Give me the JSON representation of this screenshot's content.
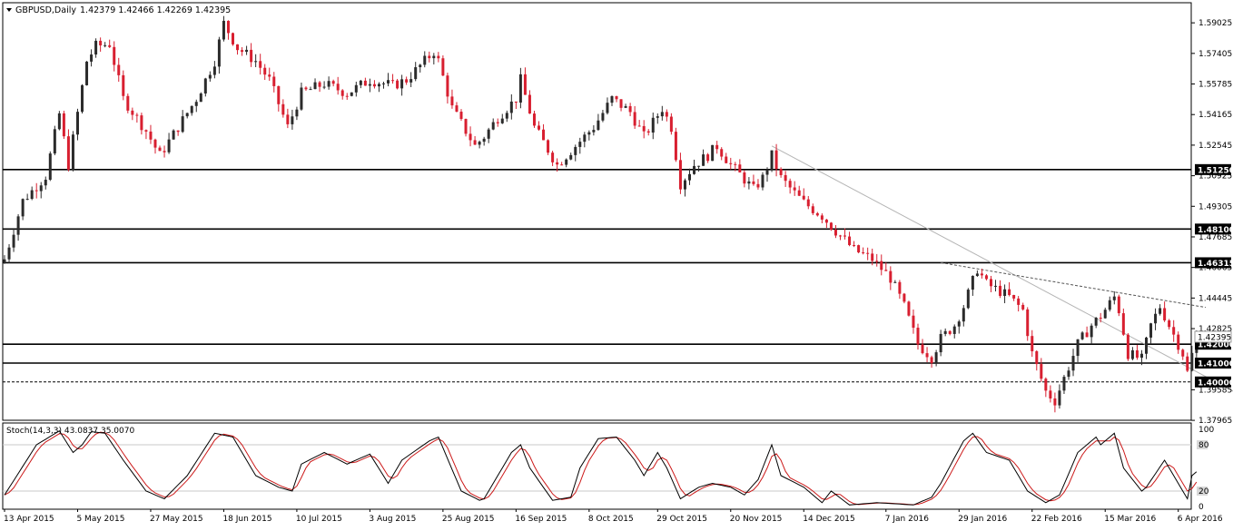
{
  "chart_data": {
    "type": "candlestick",
    "header": {
      "symbol": "GBPUSD,Daily",
      "ohlc": "1.42379 1.42466 1.42269 1.42395",
      "menu_icon": "triangle-down-icon"
    },
    "colors": {
      "bull": "#2b2b2b",
      "bear": "#d81f30",
      "level_line": "#000000",
      "trendline": "#b4b4b4",
      "stoch_main": "#000000",
      "stoch_signal": "#cc1a1a",
      "price_tag_bg": "#000000",
      "price_tag_text": "#ffffff",
      "grid_y": "#000000"
    },
    "price_axis": {
      "ylim": [
        1.3797,
        1.6009
      ],
      "ticks": [
        "1.59025",
        "1.57405",
        "1.55785",
        "1.54165",
        "1.52545",
        "1.50925",
        "1.49305",
        "1.47685",
        "1.46065",
        "1.44445",
        "1.42825",
        "1.39585",
        "1.37965"
      ]
    },
    "date_axis": {
      "labels": [
        "13 Apr 2015",
        "5 May 2015",
        "27 May 2015",
        "18 Jun 2015",
        "10 Jul 2015",
        "3 Aug 2015",
        "25 Aug 2015",
        "16 Sep 2015",
        "8 Oct 2015",
        "29 Oct 2015",
        "20 Nov 2015",
        "14 Dec 2015",
        "7 Jan 2016",
        "29 Jan 2016",
        "22 Feb 2016",
        "15 Mar 2016",
        "6 Apr 2016"
      ]
    },
    "current_price": "1.42395",
    "levels": [
      {
        "label": "1.51250",
        "value": 1.5125,
        "style": "solid"
      },
      {
        "label": "1.48100",
        "value": 1.481,
        "style": "solid"
      },
      {
        "label": "1.46315",
        "value": 1.46315,
        "style": "solid"
      },
      {
        "label": "1.42000",
        "value": 1.42,
        "style": "solid"
      },
      {
        "label": "1.41000",
        "value": 1.41,
        "style": "solid"
      },
      {
        "label": "1.40000",
        "value": 1.4,
        "style": "dashed"
      }
    ],
    "trendlines": [
      {
        "from": {
          "date": "2015-12-03",
          "price": 1.525
        },
        "to": {
          "date": "2016-05-10",
          "price": 1.3797
        },
        "style": "solid"
      },
      {
        "from": {
          "date": "2016-01-25",
          "price": 1.4632
        },
        "to": {
          "date": "2016-04-14",
          "price": 1.4395
        },
        "style": "dashed"
      }
    ],
    "price_anchors": [
      [
        "2015-04-13",
        1.465
      ],
      [
        "2015-04-17",
        1.496
      ],
      [
        "2015-04-24",
        1.509
      ],
      [
        "2015-04-29",
        1.542
      ],
      [
        "2015-05-01",
        1.515
      ],
      [
        "2015-05-07",
        1.57
      ],
      [
        "2015-05-11",
        1.578
      ],
      [
        "2015-05-14",
        1.579
      ],
      [
        "2015-05-19",
        1.55
      ],
      [
        "2015-05-26",
        1.533
      ],
      [
        "2015-05-29",
        1.52
      ],
      [
        "2015-06-04",
        1.535
      ],
      [
        "2015-06-10",
        1.55
      ],
      [
        "2015-06-16",
        1.57
      ],
      [
        "2015-06-18",
        1.59
      ],
      [
        "2015-06-23",
        1.577
      ],
      [
        "2015-06-29",
        1.57
      ],
      [
        "2015-07-02",
        1.56
      ],
      [
        "2015-07-08",
        1.535
      ],
      [
        "2015-07-13",
        1.553
      ],
      [
        "2015-07-20",
        1.558
      ],
      [
        "2015-07-27",
        1.553
      ],
      [
        "2015-08-03",
        1.56
      ],
      [
        "2015-08-10",
        1.557
      ],
      [
        "2015-08-13",
        1.56
      ],
      [
        "2015-08-19",
        1.57
      ],
      [
        "2015-08-21",
        1.575
      ],
      [
        "2015-08-24",
        1.57
      ],
      [
        "2015-08-27",
        1.545
      ],
      [
        "2015-09-03",
        1.525
      ],
      [
        "2015-09-07",
        1.53
      ],
      [
        "2015-09-10",
        1.54
      ],
      [
        "2015-09-16",
        1.55
      ],
      [
        "2015-09-17",
        1.56
      ],
      [
        "2015-09-22",
        1.535
      ],
      [
        "2015-09-29",
        1.515
      ],
      [
        "2015-10-05",
        1.525
      ],
      [
        "2015-10-09",
        1.535
      ],
      [
        "2015-10-15",
        1.55
      ],
      [
        "2015-10-21",
        1.543
      ],
      [
        "2015-10-26",
        1.53
      ],
      [
        "2015-10-30",
        1.545
      ],
      [
        "2015-11-03",
        1.535
      ],
      [
        "2015-11-05",
        1.505
      ],
      [
        "2015-11-10",
        1.515
      ],
      [
        "2015-11-13",
        1.52
      ],
      [
        "2015-11-17",
        1.525
      ],
      [
        "2015-11-20",
        1.515
      ],
      [
        "2015-11-24",
        1.51
      ],
      [
        "2015-11-27",
        1.502
      ],
      [
        "2015-12-01",
        1.508
      ],
      [
        "2015-12-03",
        1.52
      ],
      [
        "2015-12-07",
        1.508
      ],
      [
        "2015-12-10",
        1.5
      ],
      [
        "2015-12-14",
        1.495
      ],
      [
        "2015-12-18",
        1.488
      ],
      [
        "2015-12-23",
        1.48
      ],
      [
        "2015-12-29",
        1.47
      ],
      [
        "2016-01-04",
        1.465
      ],
      [
        "2016-01-08",
        1.455
      ],
      [
        "2016-01-13",
        1.44
      ],
      [
        "2016-01-18",
        1.42
      ],
      [
        "2016-01-21",
        1.413
      ],
      [
        "2016-01-25",
        1.423
      ],
      [
        "2016-01-28",
        1.43
      ],
      [
        "2016-02-01",
        1.44
      ],
      [
        "2016-02-04",
        1.46
      ],
      [
        "2016-02-08",
        1.452
      ],
      [
        "2016-02-11",
        1.448
      ],
      [
        "2016-02-15",
        1.445
      ],
      [
        "2016-02-18",
        1.438
      ],
      [
        "2016-02-22",
        1.415
      ],
      [
        "2016-02-25",
        1.395
      ],
      [
        "2016-02-29",
        1.39
      ],
      [
        "2016-03-03",
        1.408
      ],
      [
        "2016-03-07",
        1.42
      ],
      [
        "2016-03-10",
        1.43
      ],
      [
        "2016-03-14",
        1.435
      ],
      [
        "2016-03-17",
        1.445
      ],
      [
        "2016-03-18",
        1.438
      ],
      [
        "2016-03-22",
        1.415
      ],
      [
        "2016-03-25",
        1.412
      ],
      [
        "2016-03-29",
        1.43
      ],
      [
        "2016-03-31",
        1.44
      ],
      [
        "2016-04-04",
        1.43
      ],
      [
        "2016-04-07",
        1.415
      ],
      [
        "2016-04-08",
        1.405
      ],
      [
        "2016-04-12",
        1.424
      ]
    ],
    "stochastic": {
      "label": "Stoch(14,3,3) 43.0837 35.0070",
      "ylim": [
        0,
        100
      ],
      "tick_labels": [
        "100",
        "80",
        "20",
        "0"
      ],
      "levels": [
        80,
        20
      ],
      "anchors": [
        [
          "2015-04-13",
          15
        ],
        [
          "2015-04-22",
          80
        ],
        [
          "2015-04-29",
          98
        ],
        [
          "2015-05-04",
          70
        ],
        [
          "2015-05-06",
          80
        ],
        [
          "2015-05-08",
          97
        ],
        [
          "2015-05-13",
          95
        ],
        [
          "2015-05-19",
          60
        ],
        [
          "2015-05-26",
          20
        ],
        [
          "2015-06-01",
          10
        ],
        [
          "2015-06-08",
          40
        ],
        [
          "2015-06-16",
          95
        ],
        [
          "2015-06-22",
          90
        ],
        [
          "2015-06-29",
          40
        ],
        [
          "2015-07-06",
          25
        ],
        [
          "2015-07-09",
          20
        ],
        [
          "2015-07-13",
          55
        ],
        [
          "2015-07-20",
          70
        ],
        [
          "2015-07-27",
          55
        ],
        [
          "2015-08-03",
          68
        ],
        [
          "2015-08-07",
          30
        ],
        [
          "2015-08-12",
          60
        ],
        [
          "2015-08-20",
          85
        ],
        [
          "2015-08-24",
          90
        ],
        [
          "2015-08-31",
          20
        ],
        [
          "2015-09-04",
          8
        ],
        [
          "2015-09-07",
          10
        ],
        [
          "2015-09-15",
          70
        ],
        [
          "2015-09-17",
          80
        ],
        [
          "2015-09-21",
          50
        ],
        [
          "2015-09-28",
          8
        ],
        [
          "2015-10-02",
          12
        ],
        [
          "2015-10-06",
          50
        ],
        [
          "2015-10-12",
          88
        ],
        [
          "2015-10-16",
          90
        ],
        [
          "2015-10-22",
          60
        ],
        [
          "2015-10-26",
          40
        ],
        [
          "2015-10-29",
          70
        ],
        [
          "2015-11-02",
          50
        ],
        [
          "2015-11-05",
          10
        ],
        [
          "2015-11-11",
          25
        ],
        [
          "2015-11-16",
          30
        ],
        [
          "2015-11-20",
          25
        ],
        [
          "2015-11-25",
          15
        ],
        [
          "2015-11-30",
          35
        ],
        [
          "2015-12-03",
          80
        ],
        [
          "2015-12-07",
          40
        ],
        [
          "2015-12-14",
          25
        ],
        [
          "2015-12-18",
          5
        ],
        [
          "2015-12-22",
          20
        ],
        [
          "2015-12-28",
          2
        ],
        [
          "2016-01-05",
          5
        ],
        [
          "2016-01-15",
          2
        ],
        [
          "2016-01-21",
          12
        ],
        [
          "2016-01-25",
          30
        ],
        [
          "2016-02-01",
          85
        ],
        [
          "2016-02-03",
          95
        ],
        [
          "2016-02-08",
          70
        ],
        [
          "2016-02-15",
          60
        ],
        [
          "2016-02-19",
          20
        ],
        [
          "2016-02-25",
          5
        ],
        [
          "2016-03-01",
          15
        ],
        [
          "2016-03-07",
          70
        ],
        [
          "2016-03-11",
          90
        ],
        [
          "2016-03-14",
          80
        ],
        [
          "2016-03-17",
          95
        ],
        [
          "2016-03-21",
          50
        ],
        [
          "2016-03-25",
          20
        ],
        [
          "2016-03-28",
          25
        ],
        [
          "2016-04-01",
          60
        ],
        [
          "2016-04-04",
          50
        ],
        [
          "2016-04-08",
          10
        ],
        [
          "2016-04-11",
          40
        ],
        [
          "2016-04-12",
          45
        ]
      ]
    }
  }
}
